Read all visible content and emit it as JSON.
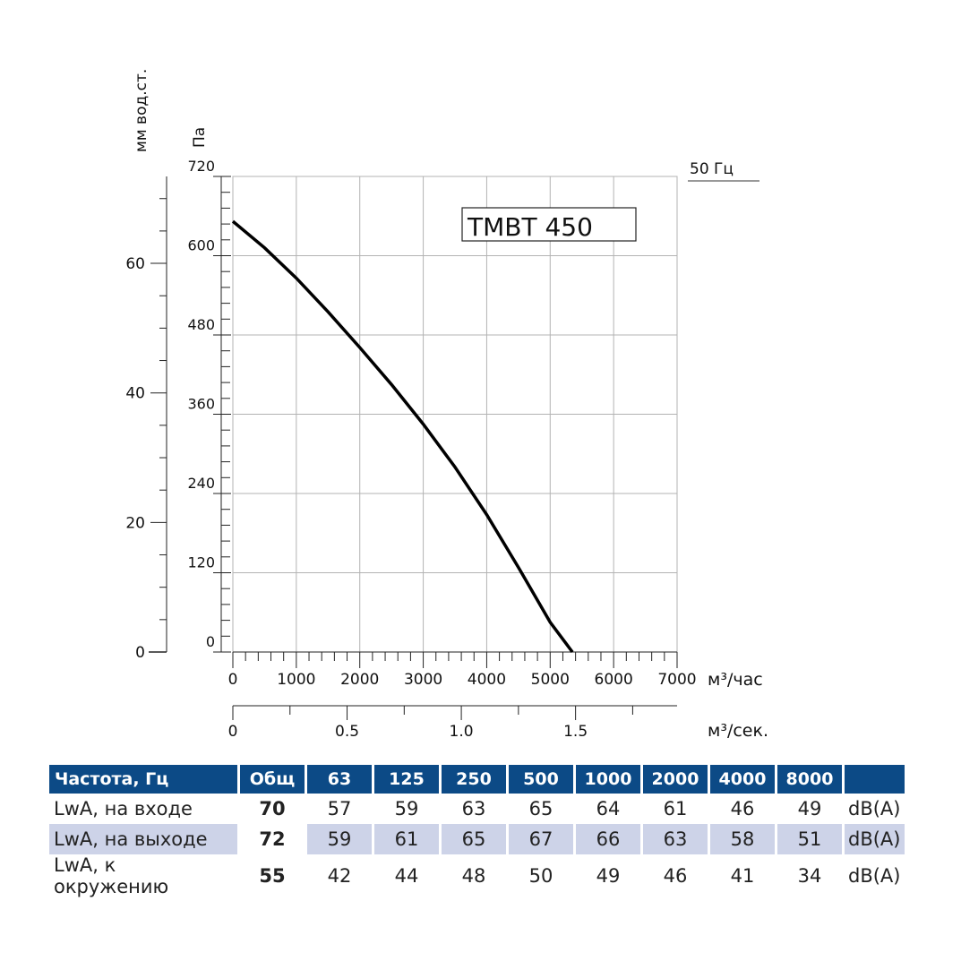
{
  "chart_data": {
    "type": "line",
    "title": "TMBT 450",
    "frequency_label": "50 Гц",
    "ylabel_mm": "мм вод.ст.",
    "ylabel_pa": "Па",
    "xlabel_hour": "м³/час",
    "xlabel_sec": "м³/сек.",
    "xlim": [
      0,
      7000
    ],
    "ylim": [
      0,
      720
    ],
    "x_ticks": [
      "0",
      "1000",
      "2000",
      "3000",
      "4000",
      "5000",
      "6000",
      "7000"
    ],
    "y_ticks_pa": [
      "0",
      "120",
      "240",
      "360",
      "480",
      "600",
      "720"
    ],
    "y_ticks_mm": [
      "0",
      "20",
      "40",
      "60"
    ],
    "x_sec_ticks": [
      "0",
      "0.5",
      "1.0",
      "1.5"
    ],
    "series": [
      {
        "x": [
          0,
          500,
          1000,
          1500,
          2000,
          2500,
          3000,
          3500,
          4000,
          4500,
          5000,
          5350
        ],
        "y": [
          652,
          612,
          566,
          515,
          461,
          405,
          345,
          280,
          208,
          128,
          45,
          0
        ]
      }
    ]
  },
  "table": {
    "headers": [
      "Частота, Гц",
      "Общ",
      "63",
      "125",
      "250",
      "500",
      "1000",
      "2000",
      "4000",
      "8000",
      ""
    ],
    "rows": [
      {
        "label": "LwA, на входе",
        "total": "70",
        "values": [
          "57",
          "59",
          "63",
          "65",
          "64",
          "61",
          "46",
          "49"
        ],
        "unit": "dB(A)"
      },
      {
        "label": "LwA, на выходе",
        "total": "72",
        "values": [
          "59",
          "61",
          "65",
          "67",
          "66",
          "63",
          "58",
          "51"
        ],
        "unit": "dB(A)"
      },
      {
        "label": "LwA, к окружению",
        "total": "55",
        "values": [
          "42",
          "44",
          "48",
          "50",
          "49",
          "46",
          "41",
          "34"
        ],
        "unit": "dB(A)"
      }
    ]
  }
}
